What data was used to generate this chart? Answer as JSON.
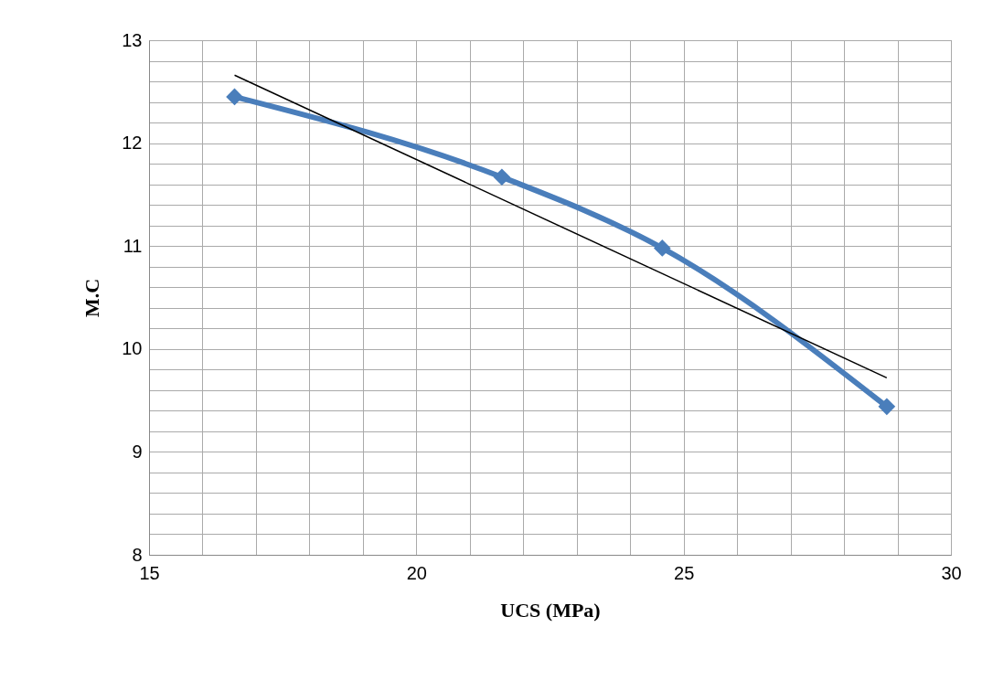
{
  "chart_data": {
    "type": "line",
    "xlabel": "UCS (MPa)",
    "ylabel": "M.C",
    "xlim": [
      15,
      30
    ],
    "xticks": [
      15,
      {
        "value": 16,
        "label": null
      },
      {
        "value": 17,
        "label": null
      },
      {
        "value": 18,
        "label": null
      },
      {
        "value": 19,
        "label": null
      },
      20,
      {
        "value": 21,
        "label": null
      },
      {
        "value": 22,
        "label": null
      },
      {
        "value": 23,
        "label": null
      },
      {
        "value": 24,
        "label": null
      },
      25,
      {
        "value": 26,
        "label": null
      },
      {
        "value": 27,
        "label": null
      },
      {
        "value": 28,
        "label": null
      },
      {
        "value": 29,
        "label": null
      },
      30
    ],
    "ylim": [
      8,
      13
    ],
    "yticks": [
      8,
      {
        "value": 8.2,
        "label": null
      },
      {
        "value": 8.4,
        "label": null
      },
      {
        "value": 8.6,
        "label": null
      },
      {
        "value": 8.8,
        "label": null
      },
      9,
      {
        "value": 9.2,
        "label": null
      },
      {
        "value": 9.4,
        "label": null
      },
      {
        "value": 9.6,
        "label": null
      },
      {
        "value": 9.8,
        "label": null
      },
      10,
      {
        "value": 10.2,
        "label": null
      },
      {
        "value": 10.4,
        "label": null
      },
      {
        "value": 10.6,
        "label": null
      },
      {
        "value": 10.8,
        "label": null
      },
      11,
      {
        "value": 11.2,
        "label": null
      },
      {
        "value": 11.4,
        "label": null
      },
      {
        "value": 11.6,
        "label": null
      },
      {
        "value": 11.8,
        "label": null
      },
      12,
      {
        "value": 12.2,
        "label": null
      },
      {
        "value": 12.4,
        "label": null
      },
      {
        "value": 12.6,
        "label": null
      },
      {
        "value": 12.8,
        "label": null
      },
      13
    ],
    "grid": true,
    "line_style": "solid",
    "series": [
      {
        "color": "#4a7ebb",
        "marker": "diamond",
        "x": [
          16.6,
          21.6,
          24.6,
          28.8
        ],
        "values": [
          12.45,
          11.67,
          10.98,
          9.44
        ]
      },
      {
        "color": "#000000",
        "marker": "none",
        "x": [
          16.6,
          28.8
        ],
        "values": [
          12.66,
          9.72
        ]
      }
    ]
  }
}
